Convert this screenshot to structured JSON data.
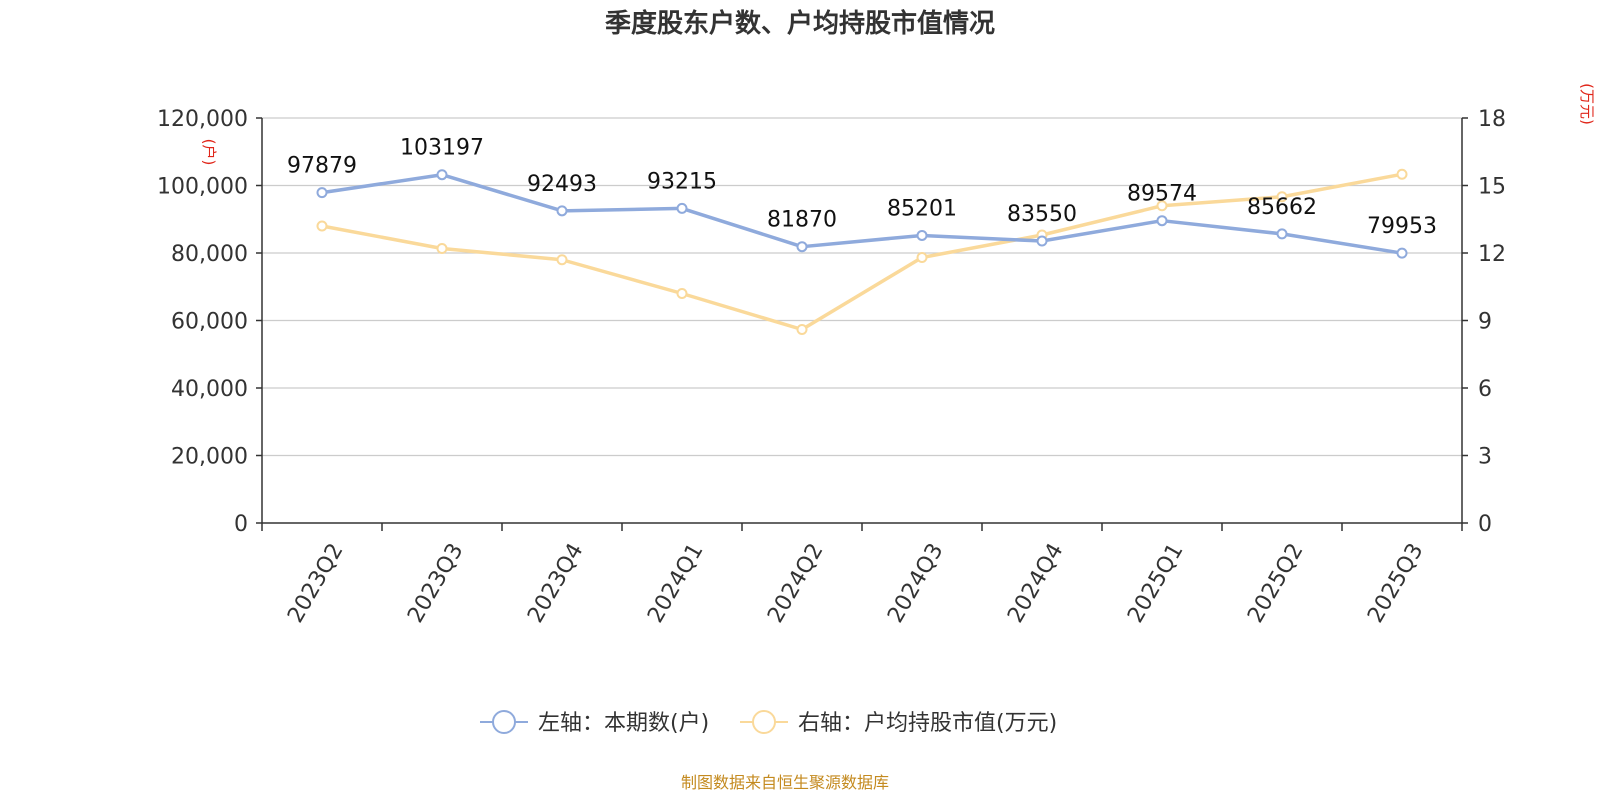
{
  "chart_data": {
    "type": "line",
    "title": "季度股东户数、户均持股市值情况",
    "categories": [
      "2023Q2",
      "2023Q3",
      "2023Q4",
      "2024Q1",
      "2024Q2",
      "2024Q3",
      "2024Q4",
      "2025Q1",
      "2025Q2",
      "2025Q3"
    ],
    "left_axis": {
      "unit": "(户)",
      "min": 0,
      "max": 120000,
      "ticks": [
        "0",
        "20,000",
        "40,000",
        "60,000",
        "80,000",
        "100,000",
        "120,000"
      ],
      "tick_values": [
        0,
        20000,
        40000,
        60000,
        80000,
        100000,
        120000
      ]
    },
    "right_axis": {
      "unit": "(万元)",
      "min": 0,
      "max": 18,
      "ticks": [
        "0",
        "3",
        "6",
        "9",
        "12",
        "15",
        "18"
      ],
      "tick_values": [
        0,
        3,
        6,
        9,
        12,
        15,
        18
      ]
    },
    "series": [
      {
        "name": "左轴：本期数(户)",
        "axis": "left",
        "color": "#8faadc",
        "values": [
          97879,
          103197,
          92493,
          93215,
          81870,
          85201,
          83550,
          89574,
          85662,
          79953
        ],
        "labels": [
          "97879",
          "103197",
          "92493",
          "93215",
          "81870",
          "85201",
          "83550",
          "89574",
          "85662",
          "79953"
        ]
      },
      {
        "name": "右轴：户均持股市值(万元)",
        "axis": "right",
        "color": "#fad99a",
        "values": [
          13.2,
          12.2,
          11.7,
          10.2,
          8.6,
          11.8,
          12.8,
          14.1,
          14.5,
          15.5
        ]
      }
    ],
    "grid": true,
    "legend_position": "bottom"
  },
  "source_text": "制图数据来自恒生聚源数据库"
}
